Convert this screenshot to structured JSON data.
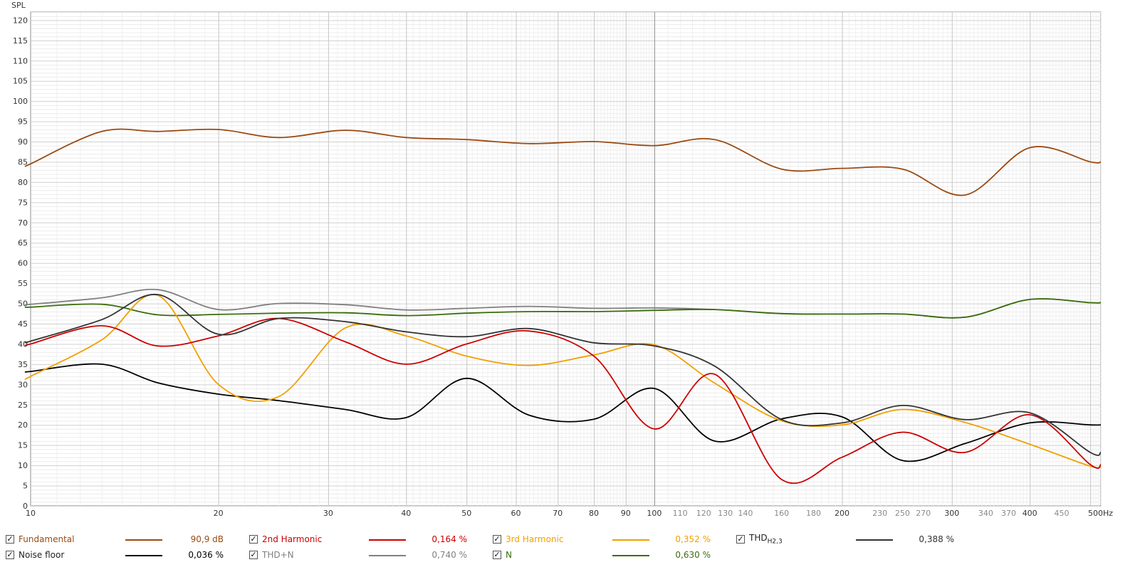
{
  "chart_data": {
    "type": "line",
    "ylabel": "SPL",
    "x_unit_label": "500Hz",
    "xscale": "log",
    "xlim": [
      10,
      520
    ],
    "ylim": [
      0,
      122
    ],
    "grid": true,
    "y_ticks": [
      0,
      5,
      10,
      15,
      20,
      25,
      30,
      35,
      40,
      45,
      50,
      55,
      60,
      65,
      70,
      75,
      80,
      85,
      90,
      95,
      100,
      105,
      110,
      115,
      120
    ],
    "x_tick_labels": [
      "10",
      "20",
      "30",
      "40",
      "50",
      "60",
      "70",
      "80",
      "90",
      "100",
      "110",
      "120",
      "130",
      "140",
      "160",
      "180",
      "200",
      "230",
      "250",
      "270",
      "300",
      "340",
      "370",
      "400",
      "450"
    ],
    "series": [
      {
        "name": "Fundamental",
        "color": "#9b4a12",
        "value": "90,9 dB",
        "x": [
          10,
          13,
          16,
          20,
          25,
          32,
          40,
          50,
          63,
          80,
          100,
          125,
          160,
          200,
          250,
          315,
          400,
          500
        ],
        "y": [
          84.5,
          92.5,
          92.5,
          93,
          91,
          92.8,
          91,
          90.5,
          89.5,
          90,
          89,
          90.5,
          83.2,
          83.4,
          83.2,
          76.8,
          88.5,
          85
        ]
      },
      {
        "name": "2nd Harmonic",
        "color": "#cc0000",
        "value": "0,164 %",
        "x": [
          10,
          13,
          16,
          20,
          25,
          32,
          40,
          50,
          63,
          80,
          100,
          125,
          160,
          200,
          250,
          315,
          400,
          500
        ],
        "y": [
          40,
          44.5,
          39.5,
          42,
          46.3,
          40.5,
          35,
          40,
          43.2,
          37,
          19,
          32.5,
          6.5,
          12,
          18.2,
          13.2,
          22.5,
          10.2
        ]
      },
      {
        "name": "3rd Harmonic",
        "color": "#f0a000",
        "value": "0,352 %",
        "x": [
          10,
          13,
          16,
          20,
          25,
          32,
          40,
          50,
          63,
          80,
          100,
          125,
          160,
          200,
          250,
          315,
          400,
          500
        ],
        "y": [
          32,
          41,
          52,
          30,
          27,
          44,
          42,
          37,
          34.7,
          37.3,
          39.8,
          30.3,
          21,
          20,
          23.8,
          20.6,
          15.2,
          9.8
        ]
      },
      {
        "name": "THD",
        "subscript": "H2,3",
        "color": "#333333",
        "value": "0,388 %",
        "x": [
          10,
          13,
          16,
          20,
          25,
          32,
          40,
          50,
          63,
          80,
          100,
          125,
          160,
          200,
          250,
          315,
          400,
          500
        ],
        "y": [
          40.7,
          46,
          52.2,
          42.4,
          46.3,
          45.5,
          43,
          41.8,
          43.8,
          40.3,
          39.5,
          34.5,
          21.3,
          20.5,
          24.8,
          21.3,
          23,
          13.2
        ]
      },
      {
        "name": "Noise floor",
        "color": "#000000",
        "value": "0,036 %",
        "x": [
          10,
          13,
          16,
          20,
          25,
          32,
          40,
          50,
          63,
          80,
          100,
          125,
          160,
          200,
          250,
          315,
          400,
          500
        ],
        "y": [
          33.2,
          35,
          30.4,
          27.6,
          26,
          23.8,
          21.8,
          31.5,
          22.4,
          21.4,
          29,
          16,
          21.5,
          22,
          11.2,
          15.4,
          20.5,
          20
        ]
      },
      {
        "name": "THD+N",
        "color": "#808080",
        "value": "0,740 %",
        "x": [
          10,
          13,
          16,
          20,
          25,
          32,
          40,
          50,
          63,
          80,
          100,
          125,
          160,
          200,
          250,
          315,
          400,
          500
        ],
        "y": [
          49.8,
          51.4,
          53.4,
          48.5,
          50,
          49.7,
          48.4,
          48.8,
          49.3,
          48.8,
          48.9,
          48.5,
          47.5,
          47.4,
          47.4,
          46.6,
          51,
          50.2
        ]
      },
      {
        "name": "N",
        "color": "#3a6e0a",
        "value": "0,630 %",
        "x": [
          10,
          13,
          16,
          20,
          25,
          32,
          40,
          50,
          63,
          80,
          100,
          125,
          160,
          200,
          250,
          315,
          400,
          500
        ],
        "y": [
          49.1,
          49.8,
          47.2,
          47.3,
          47.6,
          47.7,
          47,
          47.6,
          48,
          48,
          48.3,
          48.5,
          47.5,
          47.4,
          47.4,
          46.6,
          51,
          50.2
        ]
      }
    ]
  },
  "legend_order": [
    0,
    1,
    2,
    3,
    4,
    5,
    6
  ]
}
